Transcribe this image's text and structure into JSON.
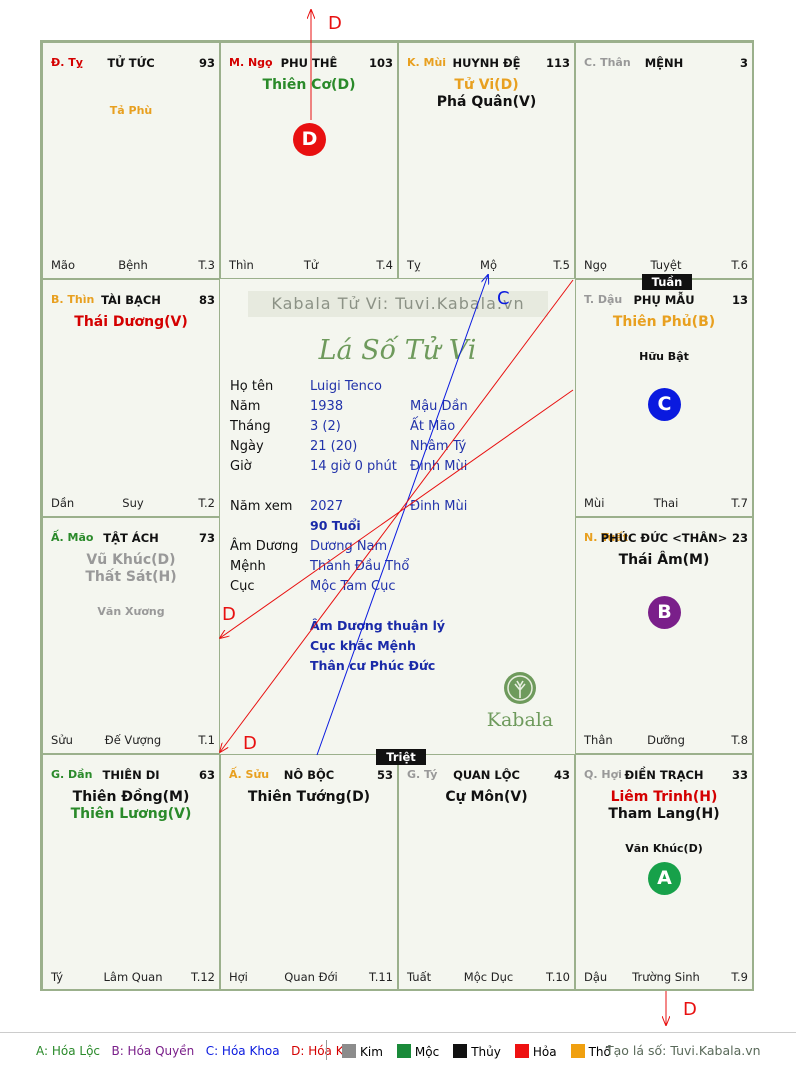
{
  "palaces": [
    {
      "id": "ty",
      "can": "Đ. Tỵ",
      "can_color": "#d40000",
      "name": "TỬ TỨC",
      "num": "93",
      "major": [],
      "minor": [
        {
          "t": "Tả Phù",
          "c": "#e8a020"
        }
      ],
      "foot": {
        "b": "Mão",
        "m": "Bệnh",
        "t": "T.3"
      }
    },
    {
      "id": "ngo",
      "can": "M. Ngọ",
      "can_color": "#d40000",
      "name": "PHU THÊ",
      "num": "103",
      "major": [
        {
          "t": "Thiên Cơ(D)",
          "c": "#2a8a2a"
        }
      ],
      "minor": [],
      "foot": {
        "b": "Thìn",
        "m": "Tử",
        "t": "T.4"
      }
    },
    {
      "id": "mui",
      "can": "K. Mùi",
      "can_color": "#e8a020",
      "name": "HUYNH ĐỆ",
      "num": "113",
      "major": [
        {
          "t": "Tử Vi(D)",
          "c": "#e8a020"
        },
        {
          "t": "Phá Quân(V)",
          "c": "#111111"
        }
      ],
      "minor": [],
      "foot": {
        "b": "Tỵ",
        "m": "Mộ",
        "t": "T.5"
      }
    },
    {
      "id": "than",
      "can": "C. Thân",
      "can_color": "#999999",
      "name": "MỆNH",
      "num": "3",
      "major": [],
      "minor": [],
      "foot": {
        "b": "Ngọ",
        "m": "Tuyệt",
        "t": "T.6"
      }
    },
    {
      "id": "thin",
      "can": "B. Thìn",
      "can_color": "#e8a020",
      "name": "TÀI BẠCH",
      "num": "83",
      "major": [
        {
          "t": "Thái Dương(V)",
          "c": "#d40000"
        }
      ],
      "minor": [],
      "foot": {
        "b": "Dần",
        "m": "Suy",
        "t": "T.2"
      }
    },
    {
      "id": "dau",
      "can": "T. Dậu",
      "can_color": "#999999",
      "name": "PHỤ MẪU",
      "num": "13",
      "major": [
        {
          "t": "Thiên Phủ(B)",
          "c": "#e8a020"
        }
      ],
      "minor": [
        {
          "t": "Hữu Bật",
          "c": "#111111"
        }
      ],
      "foot": {
        "b": "Mùi",
        "m": "Thai",
        "t": "T.7"
      }
    },
    {
      "id": "mao",
      "can": "Ấ. Mão",
      "can_color": "#2a8a2a",
      "name": "TẬT ÁCH",
      "num": "73",
      "major": [
        {
          "t": "Vũ Khúc(D)",
          "c": "#999999"
        },
        {
          "t": "Thất Sát(H)",
          "c": "#999999"
        }
      ],
      "minor": [
        {
          "t": "Văn Xương",
          "c": "#999999"
        }
      ],
      "foot": {
        "b": "Sửu",
        "m": "Đế Vượng",
        "t": "T.1"
      }
    },
    {
      "id": "tuat",
      "can": "N. Tuất",
      "can_color": "#e8a020",
      "name": "PHÚC ĐỨC <THÂN>",
      "num": "23",
      "major": [
        {
          "t": "Thái Âm(M)",
          "c": "#111111"
        }
      ],
      "minor": [],
      "foot": {
        "b": "Thân",
        "m": "Dưỡng",
        "t": "T.8"
      }
    },
    {
      "id": "dan",
      "can": "G. Dần",
      "can_color": "#2a8a2a",
      "name": "THIÊN DI",
      "num": "63",
      "major": [
        {
          "t": "Thiên Đồng(M)",
          "c": "#111111"
        },
        {
          "t": "Thiên Lương(V)",
          "c": "#2a8a2a"
        }
      ],
      "minor": [],
      "foot": {
        "b": "Tý",
        "m": "Lâm Quan",
        "t": "T.12"
      }
    },
    {
      "id": "suu",
      "can": "Ấ. Sửu",
      "can_color": "#e8a020",
      "name": "NÔ BỘC",
      "num": "53",
      "major": [
        {
          "t": "Thiên Tướng(D)",
          "c": "#111111"
        }
      ],
      "minor": [],
      "foot": {
        "b": "Hợi",
        "m": "Quan Đới",
        "t": "T.11"
      }
    },
    {
      "id": "tyy",
      "can": "G. Tý",
      "can_color": "#999999",
      "name": "QUAN LỘC",
      "num": "43",
      "major": [
        {
          "t": "Cự Môn(V)",
          "c": "#111111"
        }
      ],
      "minor": [],
      "foot": {
        "b": "Tuất",
        "m": "Mộc Dục",
        "t": "T.10"
      }
    },
    {
      "id": "hoi",
      "can": "Q. Hợi",
      "can_color": "#999999",
      "name": "ĐIỀN TRẠCH",
      "num": "33",
      "major": [
        {
          "t": "Liêm Trinh(H)",
          "c": "#d40000"
        },
        {
          "t": "Tham Lang(H)",
          "c": "#111111"
        }
      ],
      "minor": [
        {
          "t": "Văn Khúc(D)",
          "c": "#111111"
        }
      ],
      "foot": {
        "b": "Dậu",
        "m": "Trường Sinh",
        "t": "T.9"
      }
    }
  ],
  "markers": {
    "D_ngo": "D",
    "C_dau": "C",
    "B_tuat": "B",
    "A_hoi": "A"
  },
  "tags": {
    "tuan": "Tuần",
    "triet": "Triệt"
  },
  "center": {
    "watermark": "Kabala Tử Vi: Tuvi.Kabala.vn",
    "subtitle": "Lá Số Tử Vi",
    "rows": [
      {
        "k": "Họ tên",
        "v1": "Luigi Tenco",
        "v2": ""
      },
      {
        "k": "Năm",
        "v1": "1938",
        "v2": "Mậu Dần"
      },
      {
        "k": "Tháng",
        "v1": "3  (2)",
        "v2": "Ất Mão"
      },
      {
        "k": "Ngày",
        "v1": "21  (20)",
        "v2": "Nhâm Tý"
      },
      {
        "k": "Giờ",
        "v1": "14 giờ 0 phút",
        "v2": "Đinh Mùi"
      },
      {
        "k": "Năm xem",
        "v1": "2027",
        "v2": "Đinh Mùi"
      },
      {
        "k": "Âm Dương",
        "v1": "Dương Nam",
        "v2": ""
      },
      {
        "k": "Mệnh",
        "v1": "Thành Đầu Thổ",
        "v2": ""
      },
      {
        "k": "Cục",
        "v1": "Mộc Tam Cục",
        "v2": ""
      }
    ],
    "age": "90 Tuổi",
    "notes": [
      "Âm Dương thuận lý",
      "Cục khắc Mệnh",
      "Thân cư Phúc Đức"
    ],
    "logo_text": "Kabala"
  },
  "arrows": {
    "top_label": "D",
    "bottom_label": "D",
    "c_label": "C",
    "d_left1": "D",
    "d_left2": "D"
  },
  "legend": {
    "a": "A: Hóa Lộc",
    "b": "B: Hóa Quyền",
    "c": "C: Hóa Khoa",
    "d": "D: Hóa Kị",
    "elements": [
      {
        "name": "Kim",
        "color": "#8c8c8c"
      },
      {
        "name": "Mộc",
        "color": "#1a8a3a"
      },
      {
        "name": "Thủy",
        "color": "#111111"
      },
      {
        "name": "Hỏa",
        "color": "#ee1111"
      },
      {
        "name": "Thổ",
        "color": "#f0a010"
      }
    ],
    "site": "Tạo lá số: Tuvi.Kabala.vn"
  },
  "colors": {
    "red": "#e81010",
    "blue": "#0a1adf",
    "green": "#17a14a",
    "purple": "#7a1f8a"
  }
}
